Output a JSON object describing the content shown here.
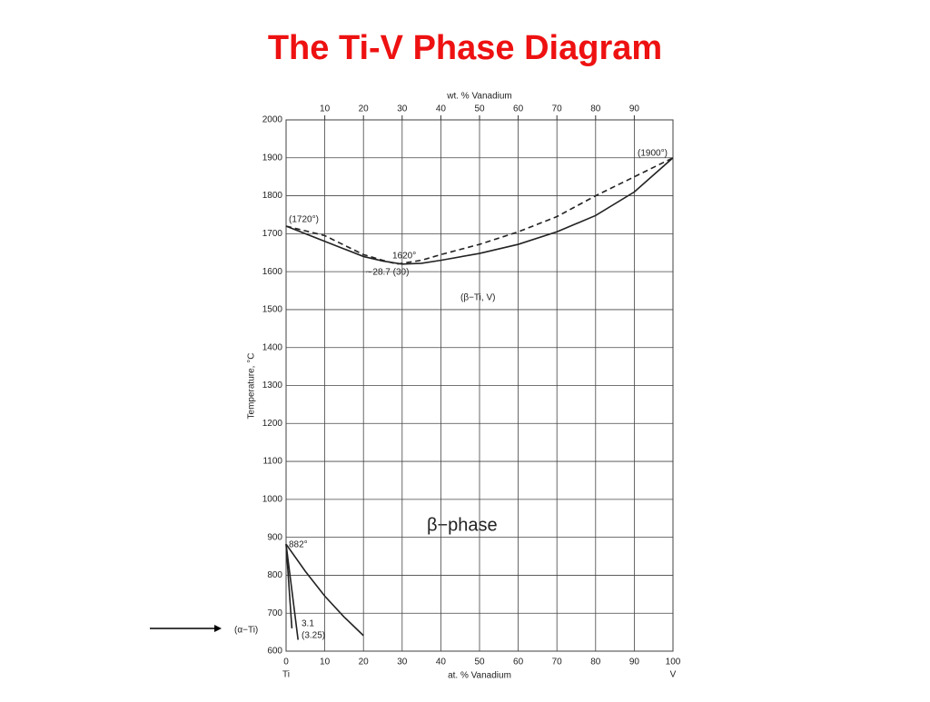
{
  "title": "The Ti-V Phase Diagram",
  "chart_data": {
    "type": "line",
    "x_label": "at. % Vanadium",
    "x2_label": "wt. % Vanadium",
    "y_label": "Temperature, °C",
    "xlim": [
      0,
      100
    ],
    "xticks": [
      0,
      10,
      20,
      30,
      40,
      50,
      60,
      70,
      80,
      90,
      100
    ],
    "x2lim": [
      0,
      100
    ],
    "x2ticks": [
      10,
      20,
      30,
      40,
      50,
      60,
      70,
      80,
      90
    ],
    "ylim": [
      600,
      2000
    ],
    "yticks": [
      600,
      700,
      800,
      900,
      1000,
      1100,
      1200,
      1300,
      1400,
      1500,
      1600,
      1700,
      1800,
      1900,
      2000
    ],
    "grid": true,
    "end_labels": [
      "Ti",
      "V"
    ],
    "series": [
      {
        "color": "#222222",
        "dashed": false,
        "x": [
          0,
          5,
          10,
          15,
          20,
          25,
          30,
          35,
          40,
          50,
          60,
          70,
          80,
          90,
          100
        ],
        "values": [
          1720,
          1700,
          1680,
          1660,
          1640,
          1628,
          1620,
          1622,
          1630,
          1648,
          1672,
          1705,
          1748,
          1810,
          1900
        ]
      },
      {
        "color": "#222222",
        "dashed": true,
        "x": [
          0,
          10,
          20,
          25,
          28.7,
          35,
          40,
          50,
          60,
          70,
          80,
          90,
          100
        ],
        "values": [
          1720,
          1695,
          1645,
          1630,
          1620,
          1630,
          1645,
          1672,
          1705,
          1745,
          1800,
          1850,
          1900
        ]
      },
      {
        "color": "#222222",
        "dashed": false,
        "x": [
          0,
          5,
          10,
          15,
          20
        ],
        "values": [
          882,
          810,
          745,
          690,
          641
        ]
      },
      {
        "color": "#222222",
        "dashed": false,
        "x": [
          0,
          1.5
        ],
        "values": [
          882,
          660
        ]
      },
      {
        "color": "#222222",
        "dashed": false,
        "x": [
          0,
          3.1
        ],
        "values": [
          882,
          630
        ]
      }
    ],
    "annotations": [
      "(1720°)",
      "(1900°)",
      "1620°",
      "∼28.7 (30)",
      "(β−Ti, V)",
      "882°",
      "3.1",
      "(3.25)",
      "(α−Ti)",
      "β−phase"
    ]
  }
}
